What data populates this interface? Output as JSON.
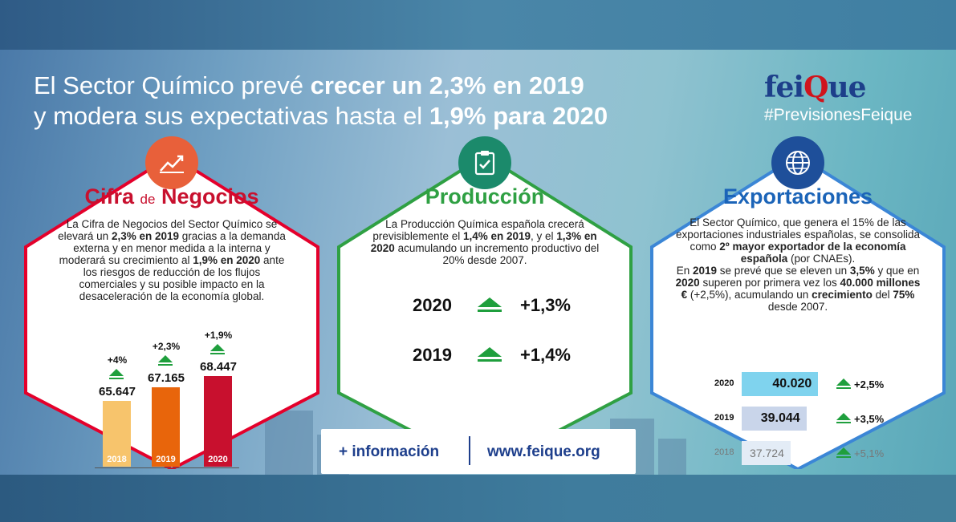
{
  "header": {
    "line1_normal": "El Sector Químico prevé ",
    "line1_bold": "crecer un 2,3% en 2019",
    "line2_normal": "y modera sus expectativas hasta el ",
    "line2_bold": "1,9% para 2020"
  },
  "brand": {
    "logo_pre": "fei",
    "logo_q": "Q",
    "logo_post": "ue",
    "hashtag": "#PrevisionesFeique"
  },
  "panels": {
    "negocios": {
      "title_part1": "Cifra ",
      "title_part2": "de",
      "title_part3": " Negocios",
      "icon": "line-chart-icon",
      "color": "#e4002b",
      "text": [
        {
          "t": "La Cifra de Negocios del Sector Químico se elevará un ",
          "b": false
        },
        {
          "t": "2,3% en 2019",
          "b": true
        },
        {
          "t": " gracias a la demanda externa y en menor medida a la interna y moderará su crecimiento al ",
          "b": false
        },
        {
          "t": "1,9% en 2020",
          "b": true
        },
        {
          "t": " ante los riesgos de reducción de los flujos comerciales y su posible impacto en la desaceleración de la economía global.",
          "b": false
        }
      ],
      "bars": [
        {
          "year": "2018",
          "value": "65.647",
          "pct": "+4%",
          "color": "#f7c46c"
        },
        {
          "year": "2019",
          "value": "67.165",
          "pct": "+2,3%",
          "color": "#e8650b"
        },
        {
          "year": "2020",
          "value": "68.447",
          "pct": "+1,9%",
          "color": "#c8102e"
        }
      ]
    },
    "produccion": {
      "title": "Producción",
      "icon": "clipboard-check-icon",
      "color": "#2fa043",
      "text": [
        {
          "t": "La Producción Química española crecerá previsiblemente el ",
          "b": false
        },
        {
          "t": "1,4% en 2019",
          "b": true
        },
        {
          "t": ", y el ",
          "b": false
        },
        {
          "t": "1,3% en 2020",
          "b": true
        },
        {
          "t": " acumulando un incremento productivo del 20% desde 2007.",
          "b": false
        }
      ],
      "rows": [
        {
          "year": "2020",
          "pct": "+1,3%"
        },
        {
          "year": "2019",
          "pct": "+1,4%"
        }
      ]
    },
    "exportaciones": {
      "title": "Exportaciones",
      "icon": "globe-icon",
      "color": "#1b64b8",
      "text1": [
        {
          "t": "El Sector Químico, que genera el 15% de las exportaciones industriales españolas, se consolida como ",
          "b": false
        },
        {
          "t": "2º mayor exportador de la economía española",
          "b": true
        },
        {
          "t": " (por CNAEs).",
          "b": false
        }
      ],
      "text2": [
        {
          "t": "En ",
          "b": false
        },
        {
          "t": "2019",
          "b": true
        },
        {
          "t": " se prevé que se eleven un ",
          "b": false
        },
        {
          "t": "3,5%",
          "b": true
        },
        {
          "t": " y que en ",
          "b": false
        },
        {
          "t": "2020",
          "b": true
        },
        {
          "t": " superen por primera vez los ",
          "b": false
        },
        {
          "t": "40.000 millones €",
          "b": true
        },
        {
          "t": " (+2,5%), acumulando un ",
          "b": false
        },
        {
          "t": "crecimiento",
          "b": true
        },
        {
          "t": " del ",
          "b": false
        },
        {
          "t": "75%",
          "b": true
        },
        {
          "t": " desde 2007.",
          "b": false
        }
      ],
      "bars": [
        {
          "year": "2020",
          "value": "40.020",
          "pct": "+2,5%",
          "color": "#7fd3ee"
        },
        {
          "year": "2019",
          "value": "39.044",
          "pct": "+3,5%",
          "color": "#c9d5ea"
        },
        {
          "year": "2018",
          "value": "37.724",
          "pct": "+5,1%",
          "color": "#e3ecf6"
        }
      ]
    }
  },
  "footer": {
    "info": "+ información",
    "url": "www.feique.org"
  }
}
